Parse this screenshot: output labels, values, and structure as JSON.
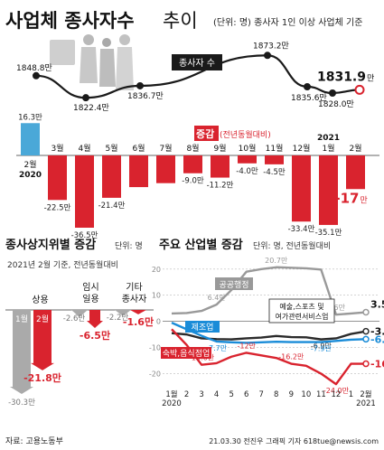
{
  "header": {
    "title": "사업체 종사자수",
    "title_suffix": "추이",
    "unit_note": "(단위: 명) 종사자 1인 이상 사업체 기준"
  },
  "chart_data": [
    {
      "type": "line",
      "series_label": "종사자 수",
      "unit_suffix": "만",
      "points": [
        {
          "label": "1848.8만",
          "value": 1848.8
        },
        {
          "label": "1822.4만",
          "value": 1822.4
        },
        {
          "label": "1836.7만",
          "value": 1836.7
        },
        {
          "label": "1873.2만",
          "value": 1873.2
        },
        {
          "label": "1835.6만",
          "value": 1835.6
        },
        {
          "label": "1828.0만",
          "value": 1828.0
        },
        {
          "label": "1831.9",
          "value": 1831.9
        }
      ]
    },
    {
      "type": "bar",
      "title": "증감",
      "subtitle": "(전년동월대비)",
      "categories": [
        "2월",
        "3월",
        "4월",
        "5월",
        "6월",
        "7월",
        "8월",
        "9월",
        "10월",
        "11월",
        "12월",
        "1월",
        "2월"
      ],
      "year_labels": {
        "start": "2020",
        "end": "2021"
      },
      "values": [
        16.3,
        -22.5,
        -36.5,
        -21.4,
        -16.0,
        -14.0,
        -9.0,
        -11.2,
        -4.0,
        -4.5,
        -33.4,
        -35.1,
        -17
      ],
      "value_labels": [
        "16.3만",
        "-22.5만",
        "-36.5만",
        "-21.4만",
        "",
        "",
        "-9.0만",
        "-11.2만",
        "-4.0만",
        "-4.5만",
        "-33.4만",
        "-35.1만",
        "-17"
      ],
      "value_label_suffix_last": "만",
      "colors": {
        "positive": "#4aa8d8",
        "negative": "#d9232e"
      }
    },
    {
      "type": "bar",
      "title": "종사상지위별 증감",
      "unit": "단위: 명",
      "note": "2021년 2월 기준, 전년동월대비",
      "groups": [
        {
          "name": "상용",
          "months": [
            "1월",
            "2월"
          ],
          "values": [
            -30.3,
            -21.8
          ],
          "value_labels": [
            "-30.3만",
            "-21.8만"
          ]
        },
        {
          "name": "임시\n일용",
          "values": [
            -2.6,
            -6.5
          ],
          "value_labels": [
            "-2.6만",
            "-6.5만"
          ]
        },
        {
          "name": "기타\n종사자",
          "values": [
            -2.2,
            -1.6
          ],
          "value_labels": [
            "-2.2만",
            "-1.6만"
          ]
        }
      ]
    },
    {
      "type": "line",
      "title": "주요 산업별 증감",
      "unit": "단위: 명, 전년동월대비",
      "x": [
        "1월 2020",
        "2",
        "3",
        "4",
        "5",
        "6",
        "7",
        "8",
        "9",
        "10",
        "11",
        "12",
        "1",
        "2월 2021"
      ],
      "x_tick_labels": [
        "1월",
        "2020",
        "2",
        "3",
        "4",
        "5",
        "6",
        "7",
        "8",
        "9",
        "10",
        "11",
        "12",
        "1",
        "2월",
        "2021"
      ],
      "y_ticks": [
        "20",
        "10",
        "0",
        "-10",
        "-20"
      ],
      "ylim": [
        -25,
        22
      ],
      "series": [
        {
          "name": "공공행정",
          "color": "#999999",
          "values": [
            3.0,
            3.2,
            4.0,
            6.4,
            12.0,
            19.0,
            20.0,
            20.7,
            20.5,
            20.3,
            19.8,
            2.6,
            3.0,
            3.5
          ],
          "labels": [
            "",
            "",
            "",
            "6.4만",
            "",
            "",
            "",
            "20.7만",
            "",
            "",
            "",
            "2.6만",
            "",
            "3.5만"
          ]
        },
        {
          "name": "예술,스포츠 및 여가관련서비스업",
          "color": "#2b2b2b",
          "values": [
            -4.5,
            -5.0,
            -6.5,
            -6.8,
            -6.9,
            -6.5,
            -6.2,
            -5.6,
            -6.0,
            -6.1,
            -6.9,
            -6.5,
            -4.8,
            -3.8
          ],
          "labels": [
            "",
            "",
            "",
            "",
            "",
            "",
            "",
            "",
            "",
            "",
            "-6.9만",
            "",
            "",
            "-3.8만"
          ]
        },
        {
          "name": "제조업",
          "color": "#1a8cd8",
          "values": [
            -0.5,
            -3.0,
            -5.5,
            -7.7,
            -8.0,
            -8.2,
            -8.0,
            -7.8,
            -7.9,
            -7.9,
            -7.9,
            -7.5,
            -7.0,
            -6.8
          ],
          "labels": [
            "",
            "",
            "",
            "-7.7만",
            "",
            "",
            "",
            "",
            "",
            "",
            "-7.9만",
            "",
            "",
            "-6.8만"
          ]
        },
        {
          "name": "숙박,음식점업",
          "color": "#d9232e",
          "values": [
            -3.0,
            -9.0,
            -16.6,
            -16.0,
            -13.5,
            -12.0,
            -13.0,
            -14.0,
            -16.2,
            -17.0,
            -20.0,
            -24.0,
            -16.2,
            -16.2
          ],
          "labels": [
            "",
            "",
            "-16.6만",
            "",
            "",
            "-12만",
            "",
            "",
            "-16.2만",
            "",
            "",
            "-24.0만",
            "",
            "-16.2만"
          ]
        }
      ]
    }
  ],
  "footer": {
    "source": "자료: 고용노동부",
    "credit": "21.03.30 전진우 그래픽 기자 618tue@newsis.com"
  }
}
